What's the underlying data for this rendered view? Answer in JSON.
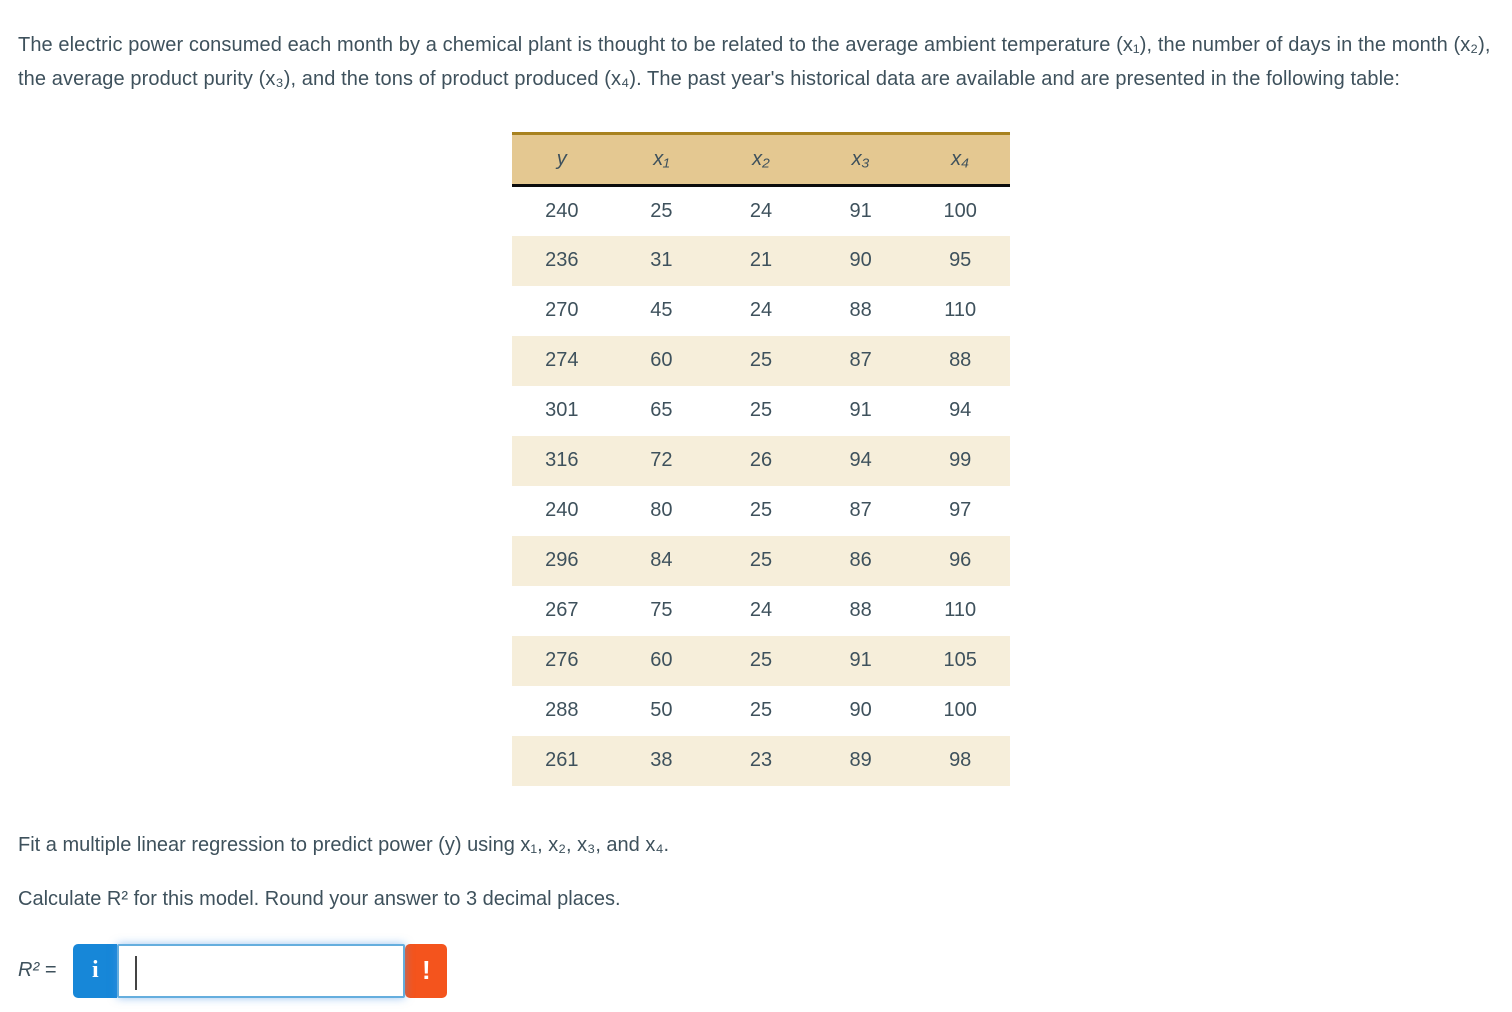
{
  "intro_paragraph": "The electric power consumed each month by a chemical plant is thought to be related to the average ambient temperature (x₁), the number of days in the month (x₂), the average product purity (x₃), and the tons of product produced (x₄). The past year's historical data are available and are presented in the following table:",
  "table": {
    "headers": [
      "y",
      "x₁",
      "x₂",
      "x₃",
      "x₄"
    ],
    "rows": [
      [
        "240",
        "25",
        "24",
        "91",
        "100"
      ],
      [
        "236",
        "31",
        "21",
        "90",
        "95"
      ],
      [
        "270",
        "45",
        "24",
        "88",
        "110"
      ],
      [
        "274",
        "60",
        "25",
        "87",
        "88"
      ],
      [
        "301",
        "65",
        "25",
        "91",
        "94"
      ],
      [
        "316",
        "72",
        "26",
        "94",
        "99"
      ],
      [
        "240",
        "80",
        "25",
        "87",
        "97"
      ],
      [
        "296",
        "84",
        "25",
        "86",
        "96"
      ],
      [
        "267",
        "75",
        "24",
        "88",
        "110"
      ],
      [
        "276",
        "60",
        "25",
        "91",
        "105"
      ],
      [
        "288",
        "50",
        "25",
        "90",
        "100"
      ],
      [
        "261",
        "38",
        "23",
        "89",
        "98"
      ]
    ]
  },
  "instructions": {
    "fit_line": "Fit a multiple linear regression to predict power (y) using x₁, x₂, x₃, and x₄.",
    "calculate_line": "Calculate R² for this model. Round your answer to 3 decimal places."
  },
  "answer": {
    "label": "R² =",
    "input_value": "",
    "input_placeholder": "",
    "info_button": "i",
    "warning_button": "!"
  },
  "colors": {
    "text": "#3e515c",
    "header_bg": "#e4c891",
    "header_top_border": "#a8821f",
    "header_bottom_border": "#0c0c0c",
    "row_alt_bg": "#f6eeda",
    "info_button_bg": "#1787d8",
    "warning_button_bg": "#f4541d",
    "input_border": "#65aede"
  }
}
